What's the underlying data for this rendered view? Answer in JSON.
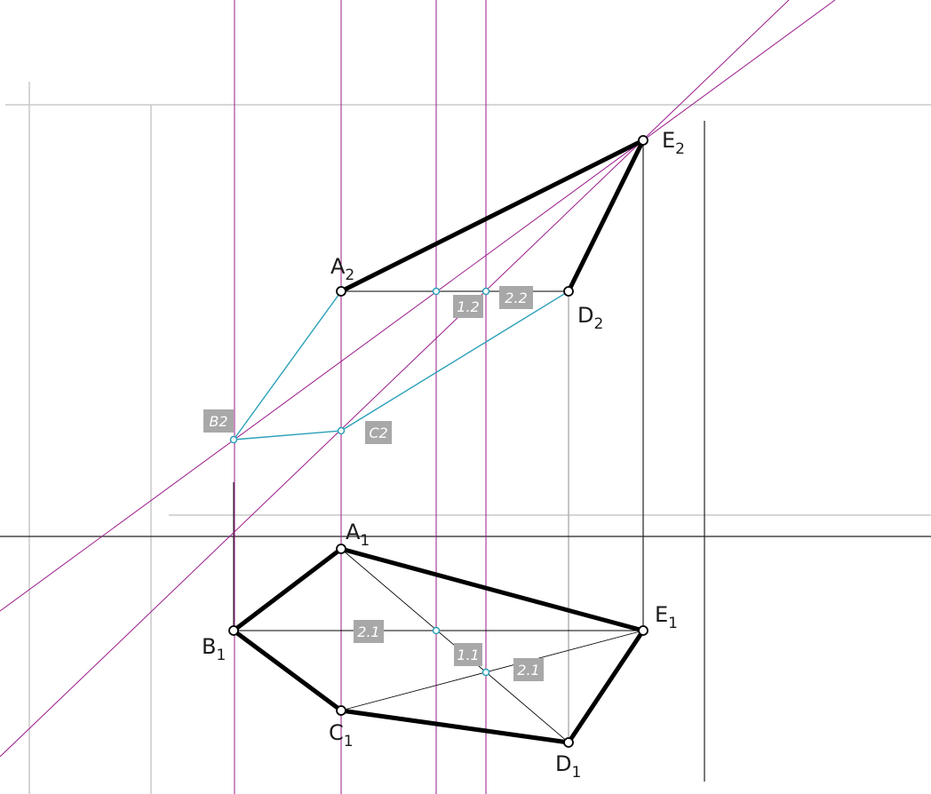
{
  "points": [
    {
      "key": "A2",
      "letter": "A",
      "sub": "2"
    },
    {
      "key": "D2",
      "letter": "D",
      "sub": "2"
    },
    {
      "key": "E2",
      "letter": "E",
      "sub": "2"
    },
    {
      "key": "A1",
      "letter": "A",
      "sub": "1"
    },
    {
      "key": "B1",
      "letter": "B",
      "sub": "1"
    },
    {
      "key": "C1",
      "letter": "C",
      "sub": "1"
    },
    {
      "key": "D1",
      "letter": "D",
      "sub": "1"
    },
    {
      "key": "E1",
      "letter": "E",
      "sub": "1"
    }
  ],
  "tags": [
    {
      "key": "B2",
      "text": "B2"
    },
    {
      "key": "C2",
      "text": "C2"
    },
    {
      "key": "t12",
      "text": "1.2"
    },
    {
      "key": "t22",
      "text": "2.2"
    },
    {
      "key": "t21",
      "text": "2.1"
    },
    {
      "key": "t11",
      "text": "1.1"
    },
    {
      "key": "t21b",
      "text": "2.1"
    }
  ],
  "colors": {
    "edge": "#000000",
    "construction": "#000000",
    "projection": "#b3b3b3",
    "helper": "#9a1a8a",
    "cyan": "#2aa0b8",
    "tag_bg": "#a8a8a8",
    "axis": "#222222"
  }
}
